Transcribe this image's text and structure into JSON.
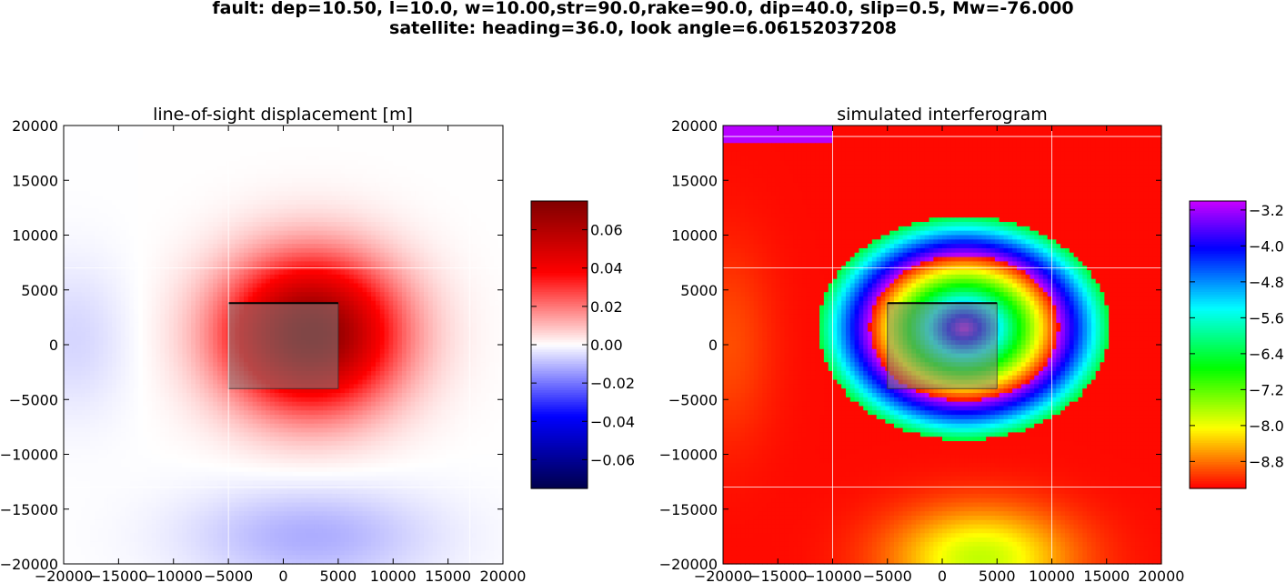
{
  "figure": {
    "suptitle_line1": "fault: dep=10.50, l=10.0, w=10.00,str=90.0,rake=90.0, dip=40.0, slip=0.5, Mw=-76.000",
    "suptitle_line2": "satellite: heading=36.0, look angle=6.06152037208"
  },
  "chart_data": [
    {
      "type": "heatmap",
      "title": "line-of-sight displacement [m]",
      "xlim": [
        -20000,
        20000
      ],
      "ylim": [
        -20000,
        20000
      ],
      "xticks": [
        -20000,
        -15000,
        -10000,
        -5000,
        0,
        5000,
        10000,
        15000,
        20000
      ],
      "yticks": [
        -20000,
        -15000,
        -10000,
        -5000,
        0,
        5000,
        10000,
        15000,
        20000
      ],
      "grid": true,
      "colormap": "seismic",
      "colorbar": {
        "range": [
          -0.075,
          0.075
        ],
        "ticks": [
          -0.06,
          -0.04,
          -0.02,
          0.0,
          0.02,
          0.04,
          0.06
        ],
        "tick_labels": [
          "−0.06",
          "−0.04",
          "−0.02",
          "0.00",
          "0.02",
          "0.04",
          "0.06"
        ]
      },
      "peak": {
        "x": 2500,
        "y": 1000,
        "value": 0.075
      },
      "trough": {
        "x": 2500,
        "y": -17500,
        "value": -0.012
      },
      "fault_patch": {
        "x": [
          -5000,
          5000
        ],
        "y": [
          -4000,
          3800
        ]
      }
    },
    {
      "type": "heatmap",
      "title": "simulated interferogram",
      "xlim": [
        -20000,
        20000
      ],
      "ylim": [
        -20000,
        20000
      ],
      "xticks": [
        -20000,
        -15000,
        -10000,
        -5000,
        0,
        5000,
        10000,
        15000,
        20000
      ],
      "yticks": [
        -20000,
        -15000,
        -10000,
        -5000,
        0,
        5000,
        10000,
        15000,
        20000
      ],
      "grid": true,
      "colormap": "gist_rainbow",
      "colorbar": {
        "range": [
          -9.4,
          -3.0
        ],
        "ticks": [
          -8.8,
          -8.0,
          -7.2,
          -6.4,
          -5.6,
          -4.8,
          -4.0,
          -3.2
        ],
        "tick_labels": [
          "−8.8",
          "−8.0",
          "−7.2",
          "−6.4",
          "−5.6",
          "−4.8",
          "−4.0",
          "−3.2"
        ]
      },
      "fringe_center": {
        "x": 2000,
        "y": 1500
      },
      "fault_patch": {
        "x": [
          -5000,
          5000
        ],
        "y": [
          -4000,
          3800
        ]
      }
    }
  ],
  "colors": {
    "background": "#ffffff",
    "axes_edge": "#000000",
    "grid": "#ffffff",
    "fault_patch": "#808080"
  }
}
